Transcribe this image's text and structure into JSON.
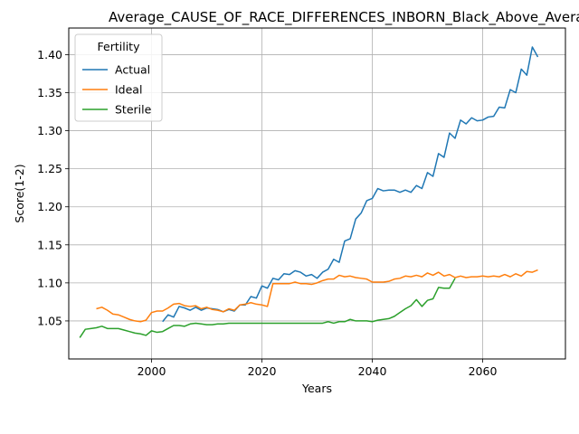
{
  "chart_data": {
    "type": "line",
    "title": "Average_CAUSE_OF_RACE_DIFFERENCES_INBORN_Black_Above_Average_",
    "xlabel": "Years",
    "ylabel": "Score(1-2)",
    "xlim": [
      1985,
      2075
    ],
    "ylim": [
      1.0,
      1.435
    ],
    "xticks": [
      2000,
      2020,
      2040,
      2060
    ],
    "yticks": [
      1.05,
      1.1,
      1.15,
      1.2,
      1.25,
      1.3,
      1.35,
      1.4
    ],
    "xtick_labels": [
      "2000",
      "2020",
      "2040",
      "2060"
    ],
    "ytick_labels": [
      "1.05",
      "1.10",
      "1.15",
      "1.20",
      "1.25",
      "1.30",
      "1.35",
      "1.40"
    ],
    "grid": true,
    "legend": {
      "title": "Fertility",
      "placement": "upper-left"
    },
    "series": [
      {
        "name": "Actual",
        "color": "#1f77b4",
        "points": [
          [
            2002,
            1.049
          ],
          [
            2003,
            1.058
          ],
          [
            2004,
            1.055
          ],
          [
            2005,
            1.069
          ],
          [
            2006,
            1.067
          ],
          [
            2007,
            1.064
          ],
          [
            2008,
            1.068
          ],
          [
            2009,
            1.064
          ],
          [
            2010,
            1.067
          ],
          [
            2011,
            1.066
          ],
          [
            2012,
            1.065
          ],
          [
            2013,
            1.062
          ],
          [
            2014,
            1.065
          ],
          [
            2015,
            1.063
          ],
          [
            2016,
            1.071
          ],
          [
            2017,
            1.071
          ],
          [
            2018,
            1.082
          ],
          [
            2019,
            1.08
          ],
          [
            2020,
            1.096
          ],
          [
            2021,
            1.093
          ],
          [
            2022,
            1.106
          ],
          [
            2023,
            1.104
          ],
          [
            2024,
            1.112
          ],
          [
            2025,
            1.111
          ],
          [
            2026,
            1.116
          ],
          [
            2027,
            1.114
          ],
          [
            2028,
            1.109
          ],
          [
            2029,
            1.111
          ],
          [
            2030,
            1.106
          ],
          [
            2031,
            1.114
          ],
          [
            2032,
            1.118
          ],
          [
            2033,
            1.131
          ],
          [
            2034,
            1.127
          ],
          [
            2035,
            1.155
          ],
          [
            2036,
            1.158
          ],
          [
            2037,
            1.184
          ],
          [
            2038,
            1.192
          ],
          [
            2039,
            1.208
          ],
          [
            2040,
            1.211
          ],
          [
            2041,
            1.224
          ],
          [
            2042,
            1.221
          ],
          [
            2043,
            1.222
          ],
          [
            2044,
            1.222
          ],
          [
            2045,
            1.219
          ],
          [
            2046,
            1.222
          ],
          [
            2047,
            1.219
          ],
          [
            2048,
            1.228
          ],
          [
            2049,
            1.224
          ],
          [
            2050,
            1.245
          ],
          [
            2051,
            1.24
          ],
          [
            2052,
            1.27
          ],
          [
            2053,
            1.265
          ],
          [
            2054,
            1.297
          ],
          [
            2055,
            1.29
          ],
          [
            2056,
            1.314
          ],
          [
            2057,
            1.309
          ],
          [
            2058,
            1.317
          ],
          [
            2059,
            1.313
          ],
          [
            2060,
            1.314
          ],
          [
            2061,
            1.318
          ],
          [
            2062,
            1.319
          ],
          [
            2063,
            1.331
          ],
          [
            2064,
            1.33
          ],
          [
            2065,
            1.354
          ],
          [
            2066,
            1.35
          ],
          [
            2067,
            1.381
          ],
          [
            2068,
            1.373
          ],
          [
            2069,
            1.41
          ],
          [
            2070,
            1.397
          ]
        ]
      },
      {
        "name": "Ideal",
        "color": "#ff7f0e",
        "points": [
          [
            1990,
            1.066
          ],
          [
            1991,
            1.068
          ],
          [
            1992,
            1.064
          ],
          [
            1993,
            1.059
          ],
          [
            1994,
            1.058
          ],
          [
            1995,
            1.055
          ],
          [
            1996,
            1.052
          ],
          [
            1997,
            1.05
          ],
          [
            1998,
            1.049
          ],
          [
            1999,
            1.051
          ],
          [
            2000,
            1.061
          ],
          [
            2001,
            1.063
          ],
          [
            2002,
            1.063
          ],
          [
            2003,
            1.067
          ],
          [
            2004,
            1.072
          ],
          [
            2005,
            1.073
          ],
          [
            2006,
            1.07
          ],
          [
            2007,
            1.069
          ],
          [
            2008,
            1.07
          ],
          [
            2009,
            1.066
          ],
          [
            2010,
            1.068
          ],
          [
            2011,
            1.065
          ],
          [
            2012,
            1.064
          ],
          [
            2013,
            1.062
          ],
          [
            2014,
            1.066
          ],
          [
            2015,
            1.064
          ],
          [
            2016,
            1.071
          ],
          [
            2017,
            1.072
          ],
          [
            2018,
            1.074
          ],
          [
            2019,
            1.072
          ],
          [
            2020,
            1.071
          ],
          [
            2021,
            1.069
          ],
          [
            2022,
            1.099
          ],
          [
            2023,
            1.099
          ],
          [
            2024,
            1.099
          ],
          [
            2025,
            1.099
          ],
          [
            2026,
            1.101
          ],
          [
            2027,
            1.099
          ],
          [
            2028,
            1.099
          ],
          [
            2029,
            1.098
          ],
          [
            2030,
            1.1
          ],
          [
            2031,
            1.103
          ],
          [
            2032,
            1.105
          ],
          [
            2033,
            1.105
          ],
          [
            2034,
            1.11
          ],
          [
            2035,
            1.108
          ],
          [
            2036,
            1.109
          ],
          [
            2037,
            1.107
          ],
          [
            2038,
            1.106
          ],
          [
            2039,
            1.105
          ],
          [
            2040,
            1.101
          ],
          [
            2041,
            1.101
          ],
          [
            2042,
            1.101
          ],
          [
            2043,
            1.102
          ],
          [
            2044,
            1.105
          ],
          [
            2045,
            1.106
          ],
          [
            2046,
            1.109
          ],
          [
            2047,
            1.108
          ],
          [
            2048,
            1.11
          ],
          [
            2049,
            1.108
          ],
          [
            2050,
            1.113
          ],
          [
            2051,
            1.11
          ],
          [
            2052,
            1.114
          ],
          [
            2053,
            1.109
          ],
          [
            2054,
            1.111
          ],
          [
            2055,
            1.107
          ],
          [
            2056,
            1.109
          ],
          [
            2057,
            1.107
          ],
          [
            2058,
            1.108
          ],
          [
            2059,
            1.108
          ],
          [
            2060,
            1.109
          ],
          [
            2061,
            1.108
          ],
          [
            2062,
            1.109
          ],
          [
            2063,
            1.108
          ],
          [
            2064,
            1.111
          ],
          [
            2065,
            1.108
          ],
          [
            2066,
            1.112
          ],
          [
            2067,
            1.109
          ],
          [
            2068,
            1.115
          ],
          [
            2069,
            1.114
          ],
          [
            2070,
            1.117
          ]
        ]
      },
      {
        "name": "Sterile",
        "color": "#2ca02c",
        "points": [
          [
            1987,
            1.028
          ],
          [
            1988,
            1.039
          ],
          [
            1989,
            1.04
          ],
          [
            1990,
            1.041
          ],
          [
            1991,
            1.043
          ],
          [
            1992,
            1.04
          ],
          [
            1993,
            1.04
          ],
          [
            1994,
            1.04
          ],
          [
            1995,
            1.038
          ],
          [
            1996,
            1.036
          ],
          [
            1997,
            1.034
          ],
          [
            1998,
            1.033
          ],
          [
            1999,
            1.031
          ],
          [
            2000,
            1.037
          ],
          [
            2001,
            1.035
          ],
          [
            2002,
            1.036
          ],
          [
            2003,
            1.04
          ],
          [
            2004,
            1.044
          ],
          [
            2005,
            1.044
          ],
          [
            2006,
            1.043
          ],
          [
            2007,
            1.046
          ],
          [
            2008,
            1.047
          ],
          [
            2009,
            1.046
          ],
          [
            2010,
            1.045
          ],
          [
            2011,
            1.045
          ],
          [
            2012,
            1.046
          ],
          [
            2013,
            1.046
          ],
          [
            2014,
            1.047
          ],
          [
            2015,
            1.047
          ],
          [
            2016,
            1.047
          ],
          [
            2017,
            1.047
          ],
          [
            2018,
            1.047
          ],
          [
            2020,
            1.047
          ],
          [
            2025,
            1.047
          ],
          [
            2030,
            1.047
          ],
          [
            2031,
            1.047
          ],
          [
            2032,
            1.049
          ],
          [
            2033,
            1.047
          ],
          [
            2034,
            1.049
          ],
          [
            2035,
            1.049
          ],
          [
            2036,
            1.052
          ],
          [
            2037,
            1.05
          ],
          [
            2038,
            1.05
          ],
          [
            2039,
            1.05
          ],
          [
            2040,
            1.049
          ],
          [
            2041,
            1.051
          ],
          [
            2042,
            1.052
          ],
          [
            2043,
            1.053
          ],
          [
            2044,
            1.056
          ],
          [
            2045,
            1.061
          ],
          [
            2046,
            1.066
          ],
          [
            2047,
            1.07
          ],
          [
            2048,
            1.078
          ],
          [
            2049,
            1.069
          ],
          [
            2050,
            1.077
          ],
          [
            2051,
            1.079
          ],
          [
            2052,
            1.094
          ],
          [
            2053,
            1.093
          ],
          [
            2054,
            1.093
          ],
          [
            2055,
            1.106
          ]
        ]
      }
    ]
  }
}
